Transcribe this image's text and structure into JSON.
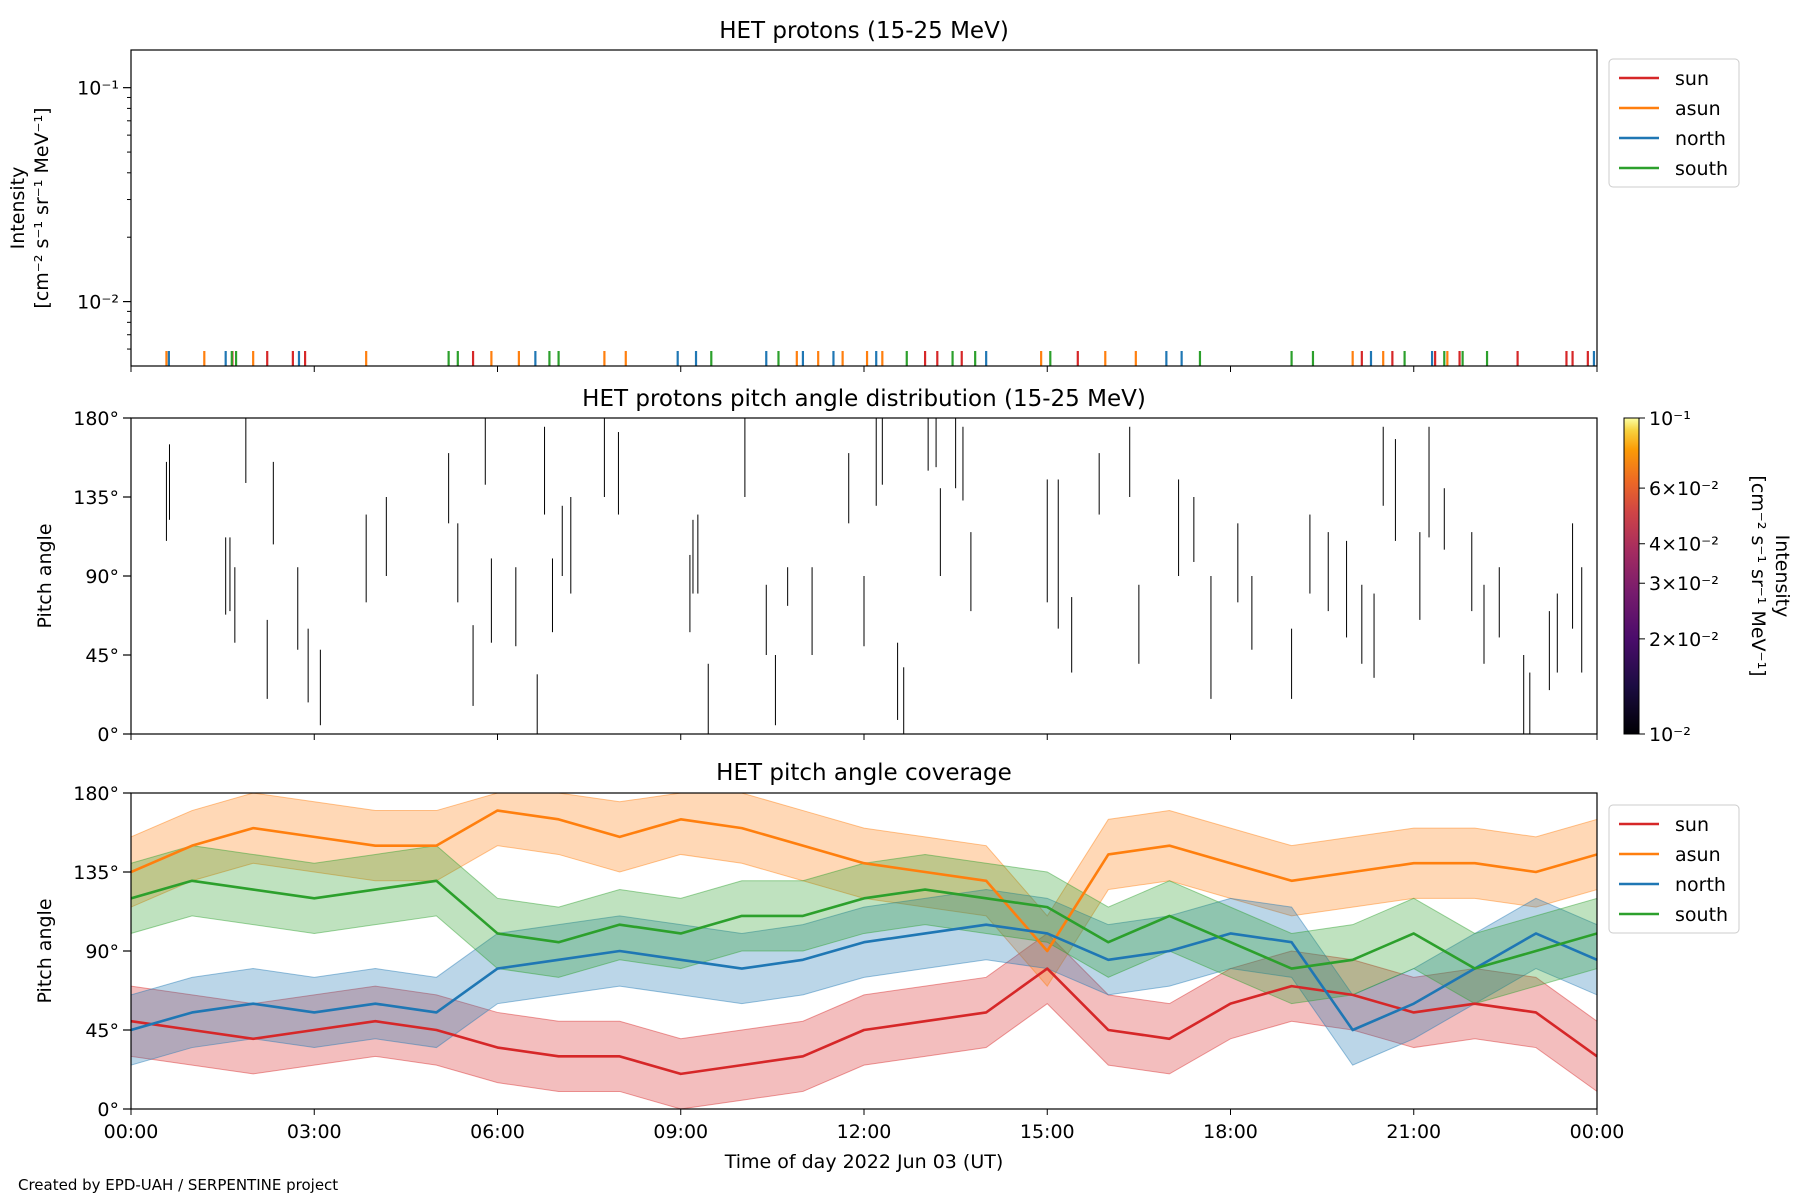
{
  "credit": "Created by EPD-UAH / SERPENTINE project",
  "xlabel": "Time of day 2022 Jun 03 (UT)",
  "x_ticks": [
    "00:00",
    "03:00",
    "06:00",
    "09:00",
    "12:00",
    "15:00",
    "18:00",
    "21:00",
    "00:00"
  ],
  "series_colors": {
    "sun": "#d62728",
    "asun": "#ff7f0e",
    "north": "#1f77b4",
    "south": "#2ca02c"
  },
  "chart_data": [
    {
      "type": "line",
      "title": "HET protons (15-25 MeV)",
      "ylabel_line1": "Intensity",
      "ylabel_line2": "[cm⁻² s⁻¹ sr⁻¹ MeV⁻¹]",
      "yscale": "log",
      "ylim": [
        0.005,
        0.15
      ],
      "xlim_hours": [
        0,
        24
      ],
      "y_tick_labels": [
        "10⁻¹",
        "10⁻²"
      ],
      "y_tick_values": [
        0.1,
        0.01
      ],
      "legend": [
        "sun",
        "asun",
        "north",
        "south"
      ],
      "legend_position": "outside-right",
      "note": "all values near the bottom edge: isolated single-count spikes only",
      "spike_hours": {
        "sun": [
          1.66,
          2.23,
          2.65,
          2.85,
          5.6,
          13.0,
          13.2,
          13.6,
          15.5,
          20.15,
          20.65,
          21.35,
          21.75,
          22.7,
          23.5,
          23.6,
          23.85
        ],
        "asun": [
          0.58,
          1.2,
          2.0,
          3.85,
          5.9,
          6.35,
          7.75,
          8.1,
          10.9,
          11.25,
          11.65,
          12.05,
          12.3,
          14.9,
          15.95,
          16.45,
          20.0,
          20.5,
          21.55
        ],
        "north": [
          0.62,
          1.55,
          2.75,
          6.62,
          8.95,
          9.25,
          10.4,
          11.0,
          11.5,
          12.2,
          14.0,
          16.95,
          17.2,
          20.3,
          21.3,
          23.95
        ],
        "south": [
          1.65,
          1.72,
          5.2,
          5.35,
          6.85,
          7.0,
          9.5,
          10.6,
          12.7,
          13.45,
          13.82,
          15.05,
          17.5,
          19.0,
          19.35,
          20.85,
          21.5,
          21.8,
          22.2
        ]
      }
    },
    {
      "type": "heatmap",
      "title": "HET protons pitch angle distribution (15-25 MeV)",
      "ylabel": "Pitch angle",
      "ylim": [
        0,
        180
      ],
      "xlim_hours": [
        0,
        24
      ],
      "y_tick_labels": [
        "180°",
        "135°",
        "90°",
        "45°",
        "0°"
      ],
      "y_tick_values": [
        180,
        135,
        90,
        45,
        0
      ],
      "colorbar_label": "Intensity",
      "colorbar_units": "[cm⁻² s⁻¹ sr⁻¹ MeV⁻¹]",
      "colorbar_scale": "log",
      "colorbar_range": [
        0.01,
        0.1
      ],
      "colorbar_tick_labels": [
        "10⁻¹",
        "6×10⁻²",
        "4×10⁻²",
        "3×10⁻²",
        "2×10⁻²",
        "10⁻²"
      ],
      "colorbar_tick_values": [
        0.1,
        0.06,
        0.04,
        0.03,
        0.02,
        0.01
      ],
      "segments": [
        [
          0.58,
          110,
          155
        ],
        [
          0.63,
          122,
          165
        ],
        [
          1.55,
          68,
          112
        ],
        [
          1.62,
          70,
          112
        ],
        [
          1.7,
          52,
          95
        ],
        [
          1.88,
          143,
          180
        ],
        [
          2.23,
          20,
          65
        ],
        [
          2.33,
          108,
          155
        ],
        [
          2.73,
          48,
          95
        ],
        [
          2.9,
          18,
          60
        ],
        [
          3.1,
          5,
          48
        ],
        [
          3.85,
          75,
          125
        ],
        [
          4.18,
          90,
          135
        ],
        [
          5.2,
          120,
          160
        ],
        [
          5.35,
          75,
          120
        ],
        [
          5.6,
          16,
          62
        ],
        [
          5.8,
          142,
          180
        ],
        [
          5.9,
          52,
          100
        ],
        [
          6.3,
          50,
          95
        ],
        [
          6.65,
          0,
          34
        ],
        [
          6.77,
          125,
          175
        ],
        [
          6.9,
          58,
          100
        ],
        [
          7.06,
          90,
          130
        ],
        [
          7.2,
          80,
          135
        ],
        [
          7.75,
          135,
          180
        ],
        [
          7.98,
          125,
          172
        ],
        [
          9.15,
          58,
          102
        ],
        [
          9.2,
          80,
          122
        ],
        [
          9.28,
          80,
          125
        ],
        [
          9.45,
          0,
          40
        ],
        [
          10.05,
          135,
          180
        ],
        [
          10.4,
          45,
          85
        ],
        [
          10.55,
          5,
          45
        ],
        [
          10.75,
          73,
          95
        ],
        [
          11.15,
          45,
          95
        ],
        [
          11.75,
          120,
          160
        ],
        [
          12.0,
          50,
          90
        ],
        [
          12.2,
          130,
          180
        ],
        [
          12.3,
          142,
          180
        ],
        [
          12.55,
          8,
          52
        ],
        [
          12.65,
          0,
          38
        ],
        [
          13.05,
          150,
          180
        ],
        [
          13.18,
          152,
          180
        ],
        [
          13.25,
          90,
          140
        ],
        [
          13.5,
          140,
          180
        ],
        [
          13.62,
          133,
          175
        ],
        [
          13.75,
          70,
          115
        ],
        [
          15.0,
          75,
          145
        ],
        [
          15.18,
          60,
          145
        ],
        [
          15.4,
          35,
          78
        ],
        [
          15.85,
          125,
          160
        ],
        [
          16.35,
          135,
          175
        ],
        [
          16.5,
          40,
          85
        ],
        [
          17.15,
          90,
          145
        ],
        [
          17.4,
          98,
          135
        ],
        [
          17.68,
          20,
          90
        ],
        [
          18.12,
          75,
          120
        ],
        [
          18.35,
          48,
          90
        ],
        [
          19.0,
          20,
          60
        ],
        [
          19.3,
          80,
          125
        ],
        [
          19.6,
          70,
          115
        ],
        [
          19.9,
          55,
          110
        ],
        [
          20.15,
          40,
          85
        ],
        [
          20.35,
          32,
          80
        ],
        [
          20.5,
          130,
          175
        ],
        [
          20.7,
          110,
          168
        ],
        [
          21.1,
          65,
          115
        ],
        [
          21.25,
          112,
          175
        ],
        [
          21.5,
          105,
          140
        ],
        [
          21.95,
          70,
          115
        ],
        [
          22.15,
          40,
          85
        ],
        [
          22.4,
          55,
          95
        ],
        [
          22.8,
          0,
          45
        ],
        [
          22.9,
          0,
          35
        ],
        [
          23.22,
          25,
          70
        ],
        [
          23.35,
          35,
          80
        ],
        [
          23.6,
          60,
          120
        ],
        [
          23.75,
          35,
          95
        ]
      ]
    },
    {
      "type": "line",
      "title": "HET pitch angle coverage",
      "ylabel": "Pitch angle",
      "ylim": [
        0,
        180
      ],
      "xlim_hours": [
        0,
        24
      ],
      "y_tick_labels": [
        "180°",
        "135°",
        "90°",
        "45°",
        "0°"
      ],
      "y_tick_values": [
        180,
        135,
        90,
        45,
        0
      ],
      "legend": [
        "sun",
        "asun",
        "north",
        "south"
      ],
      "legend_position": "outside-right",
      "band_halfwidth_deg": 20,
      "series": [
        {
          "name": "sun",
          "x": [
            0,
            1,
            2,
            3,
            4,
            5,
            6,
            7,
            8,
            9,
            10,
            11,
            12,
            13,
            14,
            15,
            16,
            17,
            18,
            19,
            20,
            21,
            22,
            23,
            24
          ],
          "values": [
            50,
            45,
            40,
            45,
            50,
            45,
            35,
            30,
            30,
            20,
            25,
            30,
            45,
            50,
            55,
            80,
            45,
            40,
            60,
            70,
            65,
            55,
            60,
            55,
            30
          ]
        },
        {
          "name": "asun",
          "x": [
            0,
            1,
            2,
            3,
            4,
            5,
            6,
            7,
            8,
            9,
            10,
            11,
            12,
            13,
            14,
            15,
            16,
            17,
            18,
            19,
            20,
            21,
            22,
            23,
            24
          ],
          "values": [
            135,
            150,
            160,
            155,
            150,
            150,
            170,
            165,
            155,
            165,
            160,
            150,
            140,
            135,
            130,
            90,
            145,
            150,
            140,
            130,
            135,
            140,
            140,
            135,
            145
          ]
        },
        {
          "name": "north",
          "x": [
            0,
            1,
            2,
            3,
            4,
            5,
            6,
            7,
            8,
            9,
            10,
            11,
            12,
            13,
            14,
            15,
            16,
            17,
            18,
            19,
            20,
            21,
            22,
            23,
            24
          ],
          "values": [
            45,
            55,
            60,
            55,
            60,
            55,
            80,
            85,
            90,
            85,
            80,
            85,
            95,
            100,
            105,
            100,
            85,
            90,
            100,
            95,
            45,
            60,
            80,
            100,
            85
          ]
        },
        {
          "name": "south",
          "x": [
            0,
            1,
            2,
            3,
            4,
            5,
            6,
            7,
            8,
            9,
            10,
            11,
            12,
            13,
            14,
            15,
            16,
            17,
            18,
            19,
            20,
            21,
            22,
            23,
            24
          ],
          "values": [
            120,
            130,
            125,
            120,
            125,
            130,
            100,
            95,
            105,
            100,
            110,
            110,
            120,
            125,
            120,
            115,
            95,
            110,
            95,
            80,
            85,
            100,
            80,
            90,
            100
          ]
        }
      ]
    }
  ]
}
